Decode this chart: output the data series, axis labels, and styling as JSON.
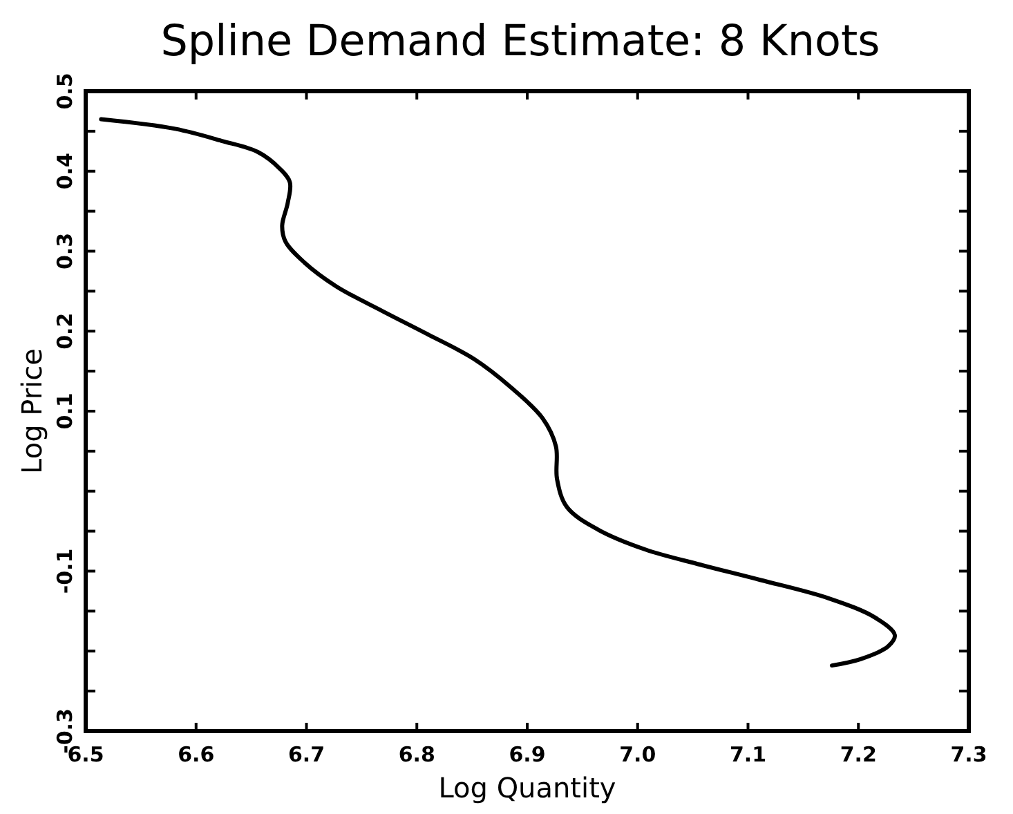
{
  "chart_data": {
    "type": "line",
    "title": "Spline Demand Estimate: 8 Knots",
    "xlabel": "Log Quantity",
    "ylabel": "Log Price",
    "xlim": [
      6.5,
      7.3
    ],
    "ylim": [
      -0.3,
      0.5
    ],
    "xticks": [
      6.5,
      6.6,
      6.7,
      6.8,
      6.9,
      {
        "value": 7,
        "label": "7.0"
      },
      7.1,
      7.2,
      7.3
    ],
    "yticks": [
      -0.3,
      {
        "value": -0.25,
        "label": null
      },
      {
        "value": -0.2,
        "label": null
      },
      {
        "value": -0.15,
        "label": null
      },
      -0.1,
      {
        "value": -0.05,
        "label": null
      },
      {
        "value": 0,
        "label": null
      },
      {
        "value": 0.05,
        "label": null
      },
      0.1,
      {
        "value": 0.15,
        "label": null
      },
      0.2,
      {
        "value": 0.25,
        "label": null
      },
      0.3,
      {
        "value": 0.35,
        "label": null
      },
      0.4,
      {
        "value": 0.45,
        "label": null
      },
      0.5
    ],
    "grid": false,
    "marker": "none",
    "line_style": "solid",
    "series": [
      {
        "color": "#000000",
        "x": [
          6.514,
          6.581,
          6.623,
          6.656,
          6.676,
          6.685,
          6.683,
          6.678,
          6.681,
          6.698,
          6.727,
          6.769,
          6.81,
          6.852,
          6.885,
          6.914,
          6.926,
          6.927,
          6.936,
          6.964,
          7.007,
          7.057,
          7.111,
          7.173,
          7.215,
          7.233,
          7.227,
          7.202,
          7.176
        ],
        "values": [
          0.465,
          0.453,
          0.438,
          0.424,
          0.403,
          0.386,
          0.36,
          0.332,
          0.312,
          0.286,
          0.256,
          0.225,
          0.196,
          0.165,
          0.13,
          0.091,
          0.056,
          0.015,
          -0.02,
          -0.048,
          -0.073,
          -0.092,
          -0.111,
          -0.134,
          -0.158,
          -0.18,
          -0.194,
          -0.21,
          -0.218
        ]
      }
    ]
  }
}
